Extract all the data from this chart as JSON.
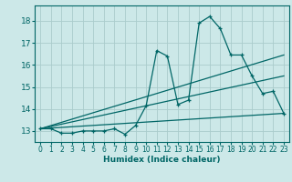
{
  "xlabel": "Humidex (Indice chaleur)",
  "background_color": "#cce8e8",
  "grid_color": "#aacccc",
  "line_color": "#006666",
  "xlim": [
    -0.5,
    23.5
  ],
  "ylim": [
    12.5,
    18.7
  ],
  "yticks": [
    13,
    14,
    15,
    16,
    17,
    18
  ],
  "xticks": [
    0,
    1,
    2,
    3,
    4,
    5,
    6,
    7,
    8,
    9,
    10,
    11,
    12,
    13,
    14,
    15,
    16,
    17,
    18,
    19,
    20,
    21,
    22,
    23
  ],
  "series1_x": [
    0,
    1,
    2,
    3,
    4,
    5,
    6,
    7,
    8,
    9,
    10,
    11,
    12,
    13,
    14,
    15,
    16,
    17,
    18,
    19,
    20,
    21,
    22,
    23
  ],
  "series1_y": [
    13.1,
    13.1,
    12.9,
    12.9,
    13.0,
    13.0,
    13.0,
    13.1,
    12.85,
    13.25,
    14.15,
    16.65,
    16.4,
    14.2,
    14.4,
    17.9,
    18.2,
    17.65,
    16.45,
    16.45,
    15.5,
    14.7,
    14.8,
    13.8
  ],
  "series2_x": [
    0,
    23
  ],
  "series2_y": [
    13.1,
    16.45
  ],
  "series3_x": [
    0,
    23
  ],
  "series3_y": [
    13.1,
    15.5
  ],
  "series4_x": [
    0,
    23
  ],
  "series4_y": [
    13.1,
    13.8
  ]
}
